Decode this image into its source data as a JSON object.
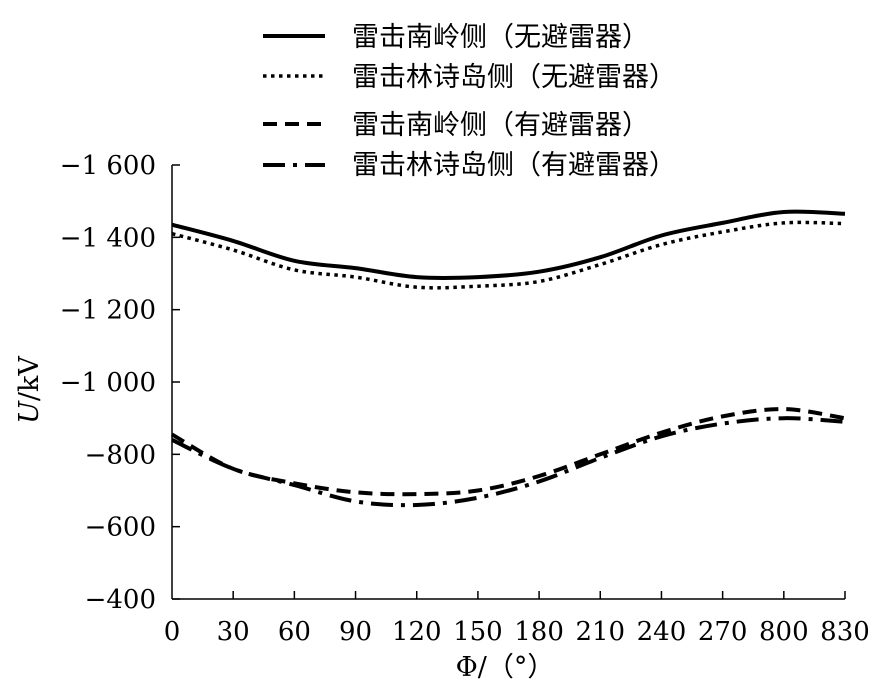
{
  "chart_data": {
    "type": "line",
    "title": "",
    "xlabel": "Φ/（°）",
    "ylabel": "U/kV",
    "x_tick_labels": [
      "0",
      "30",
      "60",
      "90",
      "120",
      "150",
      "180",
      "210",
      "240",
      "270",
      "800",
      "830"
    ],
    "y_tick_labels": [
      "−400",
      "−600",
      "−800",
      "−1 000",
      "−1 200",
      "−1 400",
      "−1 600"
    ],
    "y_ticks": [
      -400,
      -600,
      -800,
      -1000,
      -1200,
      -1400,
      -1600
    ],
    "ylim": [
      -400,
      -1600
    ],
    "legend_position": "top",
    "grid": false,
    "series": [
      {
        "name": "雷击南岭侧（无避雷器）",
        "style": "solid",
        "values": [
          -1435,
          -1390,
          -1335,
          -1315,
          -1290,
          -1290,
          -1305,
          -1345,
          -1405,
          -1440,
          -1470,
          -1465
        ]
      },
      {
        "name": "雷击林诗岛侧（无避雷器）",
        "style": "dotted",
        "values": [
          -1410,
          -1365,
          -1310,
          -1290,
          -1262,
          -1265,
          -1278,
          -1325,
          -1380,
          -1415,
          -1440,
          -1438
        ]
      },
      {
        "name": "雷击南岭侧（有避雷器）",
        "style": "dashed",
        "values": [
          -855,
          -760,
          -720,
          -695,
          -690,
          -700,
          -740,
          -800,
          -860,
          -905,
          -925,
          -900
        ]
      },
      {
        "name": "雷击林诗岛侧（有避雷器）",
        "style": "dashdot",
        "values": [
          -840,
          -760,
          -715,
          -670,
          -660,
          -680,
          -725,
          -790,
          -850,
          -885,
          -900,
          -890
        ]
      }
    ]
  }
}
